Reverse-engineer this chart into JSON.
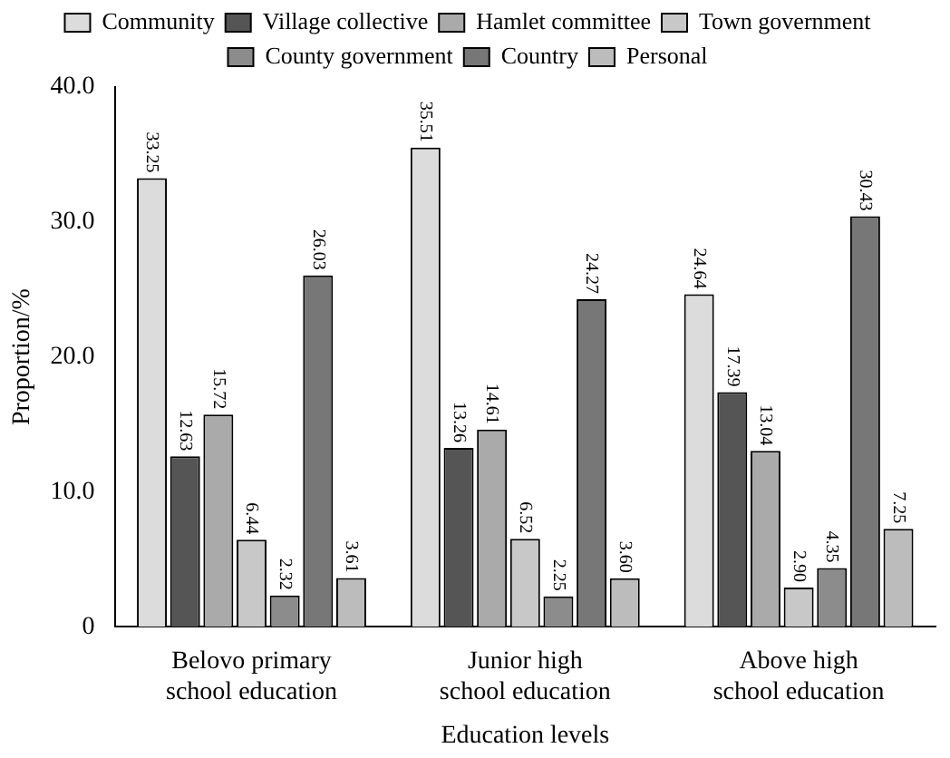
{
  "chart_data": {
    "type": "bar",
    "xlabel": "Education levels",
    "ylabel": "Proportion/%",
    "categories": [
      "Belovo primary school education",
      "Junior high school education",
      "Above high school education"
    ],
    "series": [
      {
        "name": "Community",
        "color": "#dcdcdc",
        "values": [
          33.25,
          35.51,
          24.64
        ],
        "value_labels": [
          "33.25",
          "35.51",
          "24.64"
        ]
      },
      {
        "name": "Village collective",
        "color": "#555555",
        "values": [
          12.63,
          13.26,
          17.39
        ],
        "value_labels": [
          "12.63",
          "13.26",
          "17.39"
        ]
      },
      {
        "name": "Hamlet committee",
        "color": "#aaaaaa",
        "values": [
          15.72,
          14.61,
          13.04
        ],
        "value_labels": [
          "15.72",
          "14.61",
          "13.04"
        ]
      },
      {
        "name": "Town government",
        "color": "#c8c8c8",
        "values": [
          6.44,
          6.52,
          2.9
        ],
        "value_labels": [
          "6.44",
          "6.52",
          "2.90"
        ]
      },
      {
        "name": "County government",
        "color": "#8c8c8c",
        "values": [
          2.32,
          2.25,
          4.35
        ],
        "value_labels": [
          "2.32",
          "2.25",
          "4.35"
        ]
      },
      {
        "name": "Country",
        "color": "#777777",
        "values": [
          26.03,
          24.27,
          30.43
        ],
        "value_labels": [
          "26.03",
          "24.27",
          "30.43"
        ]
      },
      {
        "name": "Personal",
        "color": "#bcbcbc",
        "values": [
          3.61,
          3.6,
          7.25
        ],
        "value_labels": [
          "3.61",
          "3.60",
          "7.25"
        ]
      }
    ],
    "ylim": [
      0,
      40
    ],
    "yticks": [
      0,
      {
        "value": 10,
        "label": "10.0"
      },
      {
        "value": 20,
        "label": "20.0"
      },
      {
        "value": 30,
        "label": "30.0"
      },
      {
        "value": 40,
        "label": "40.0"
      }
    ],
    "grid": false,
    "legend": "top"
  }
}
